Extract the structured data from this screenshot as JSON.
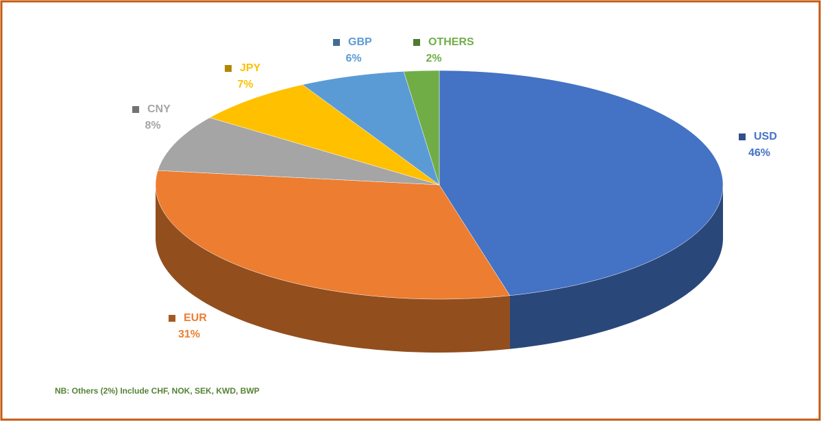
{
  "chart_data": {
    "type": "pie",
    "categories": [
      "USD",
      "EUR",
      "CNY",
      "JPY",
      "GBP",
      "OTHERS"
    ],
    "values": [
      46,
      31,
      8,
      7,
      6,
      2
    ],
    "value_labels": [
      "46%",
      "31%",
      "8%",
      "7%",
      "6%",
      "2%"
    ],
    "colors": [
      "#4472c4",
      "#ed7d31",
      "#a5a5a5",
      "#ffc000",
      "#5b9bd5",
      "#70ad47"
    ],
    "annotation": "NB: Others (2%) Include CHF, NOK, SEK, KWD, BWP"
  }
}
